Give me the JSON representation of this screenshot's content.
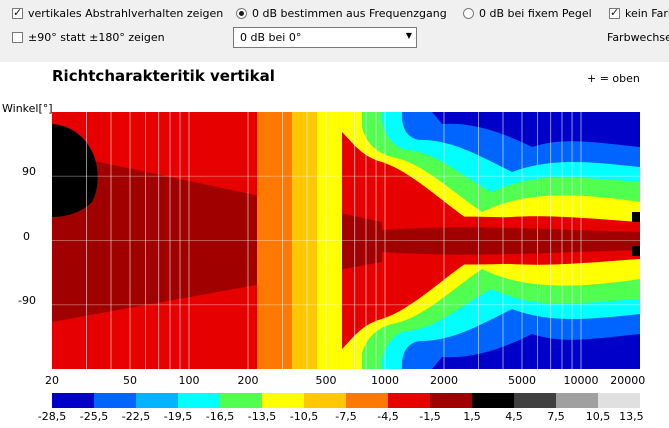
{
  "toolbar": {
    "vertical_radiation": {
      "label": "vertikales Abstrahlverhalten zeigen",
      "checked": true
    },
    "angle_range": {
      "label": "±90° statt ±180° zeigen",
      "checked": false
    },
    "db_from_freq": {
      "label": "0 dB bestimmen aus Frequenzgang",
      "selected": true
    },
    "db_fixed": {
      "label": "0 dB bei fixem Pegel",
      "selected": false
    },
    "no_color_change": {
      "label": "kein Farbs",
      "checked": true
    },
    "farbwechsel_label": "Farbwechsel",
    "reference_select": {
      "value": "0 dB bei 0°"
    }
  },
  "chart_data": {
    "type": "heatmap",
    "title": "Richtcharakteritik vertikal",
    "annotation": "+ = oben",
    "ylabel": "Winkel[°]",
    "ytick_labels": [
      "90",
      "0",
      "-90"
    ],
    "yticks": [
      90,
      0,
      -90
    ],
    "ylim": [
      -180,
      180
    ],
    "xscale": "log",
    "xlim": [
      20,
      20000
    ],
    "xtick_labels": [
      "20",
      "50",
      "100",
      "200",
      "500",
      "1000",
      "2000",
      "5000",
      "10000",
      "20000"
    ],
    "xticks": [
      20,
      50,
      100,
      200,
      500,
      1000,
      2000,
      5000,
      10000,
      20000
    ],
    "grid": true,
    "colorbar": {
      "tick_labels": [
        "-28,5",
        "-25,5",
        "-22,5",
        "-19,5",
        "-16,5",
        "-13,5",
        "-10,5",
        "-7,5",
        "-4,5",
        "-1,5",
        "1,5",
        "4,5",
        "7,5",
        "10,5",
        "13,5"
      ],
      "colors": [
        "#0000c8",
        "#0064ff",
        "#00b4ff",
        "#00ffff",
        "#50ff50",
        "#ffff00",
        "#ffc800",
        "#ff7800",
        "#e60000",
        "#a00000",
        "#000000",
        "#404040",
        "#a0a0a0",
        "#e0e0e0"
      ]
    }
  }
}
